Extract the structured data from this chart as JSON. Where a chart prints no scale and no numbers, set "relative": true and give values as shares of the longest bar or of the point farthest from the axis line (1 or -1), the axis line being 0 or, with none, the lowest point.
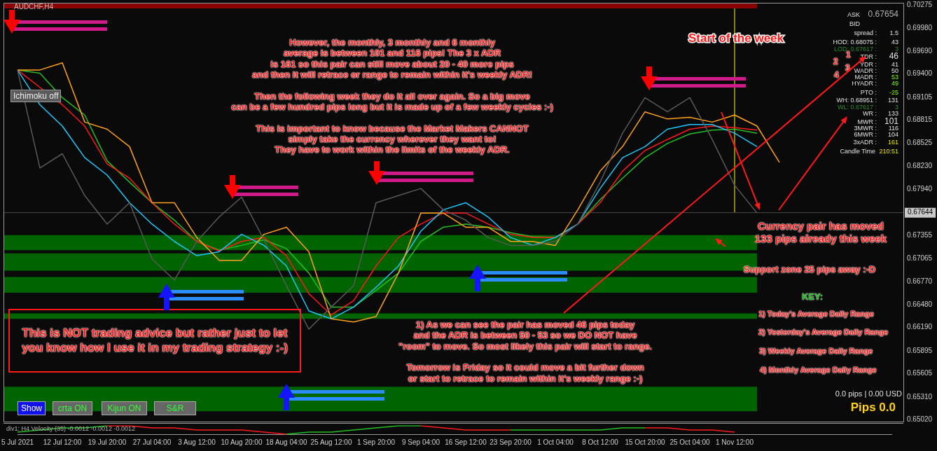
{
  "chart_data": [
    {
      "type": "line",
      "title": "AUDCHF,H4",
      "marker": "none",
      "tick_labels": "y",
      "categories": [
        "5 Jul 2021",
        null,
        "12 Jul 12:00",
        null,
        "19 Jul 20:00",
        null,
        "27 Jul 04:00",
        null,
        "3 Aug 12:00",
        null,
        "10 Aug 20:00",
        null,
        "18 Aug 04:00",
        null,
        "25 Aug 12:00",
        null,
        "1 Sep 20:00",
        null,
        "9 Sep 04:00",
        null,
        "16 Sep 12:00",
        null,
        "23 Sep 20:00",
        null,
        "1 Oct 04:00",
        null,
        "8 Oct 12:00",
        null,
        "15 Oct 20:00",
        null,
        "25 Oct 04:00",
        null,
        "1 Nov 12:00",
        null,
        null,
        null,
        null,
        null,
        null,
        null
      ],
      "series": [
        {
          "color": "#5a5a5a",
          "values": [
            0.6945,
            0.6821,
            0.6839,
            0.6786,
            0.675,
            0.6777,
            0.6706,
            0.6679,
            0.6728,
            0.6759,
            0.6784,
            0.673,
            0.6672,
            0.6617,
            0.6645,
            0.6672,
            0.6777,
            0.6786,
            0.6795,
            0.6768,
            0.6755,
            0.6733,
            0.6723,
            0.6723,
            0.6728,
            0.675,
            0.6803,
            0.6865,
            0.691,
            0.6892,
            0.691,
            0.6857,
            0.6799,
            0.6764,
            null,
            null,
            null,
            null,
            null,
            null
          ]
        },
        {
          "color": "#ffa21a",
          "values": [
            0.6945,
            0.6945,
            0.6954,
            0.6879,
            0.687,
            0.6848,
            0.6777,
            0.6777,
            0.6733,
            0.6704,
            0.6704,
            0.6737,
            0.6746,
            0.6715,
            0.663,
            0.6626,
            0.6633,
            0.6688,
            0.6764,
            0.6764,
            0.6746,
            0.6746,
            0.6728,
            0.6728,
            0.6723,
            0.6768,
            0.6817,
            0.6848,
            0.6892,
            0.6883,
            0.6885,
            0.6879,
            0.6888,
            0.6874,
            0.6828,
            null,
            null,
            null,
            null,
            null
          ]
        },
        {
          "color": "#1ec8ff",
          "values": [
            0.6945,
            0.6901,
            0.6874,
            0.6834,
            0.6812,
            0.6777,
            0.675,
            0.6728,
            0.671,
            0.6715,
            0.6737,
            0.6723,
            0.6697,
            0.664,
            0.663,
            0.6645,
            0.667,
            0.6697,
            0.6741,
            0.6768,
            0.6777,
            0.6759,
            0.6733,
            0.6723,
            0.6733,
            0.675,
            0.6795,
            0.6834,
            0.6848,
            0.687,
            0.6876,
            0.6876,
            0.6865,
            0.6848,
            null,
            null,
            null,
            null,
            null,
            null
          ]
        },
        {
          "color": "#ff1a1a",
          "values": [
            0.6945,
            0.6923,
            0.6901,
            0.6874,
            0.6826,
            0.6808,
            0.6777,
            0.675,
            0.6728,
            0.6716,
            0.6728,
            0.6733,
            0.671,
            0.6662,
            0.6635,
            0.6653,
            0.6697,
            0.6733,
            0.675,
            0.6764,
            0.6764,
            0.675,
            0.6737,
            0.6733,
            0.6733,
            0.675,
            0.6777,
            0.6817,
            0.6843,
            0.6857,
            0.687,
            0.6874,
            0.6872,
            0.6869,
            null,
            null,
            null,
            null,
            null,
            null
          ]
        },
        {
          "color": "#22c022",
          "values": [
            0.6945,
            0.6941,
            0.691,
            0.6888,
            0.683,
            0.6803,
            0.6777,
            0.6755,
            0.6728,
            0.6717,
            0.6723,
            0.673,
            0.6719,
            0.6688,
            0.6645,
            0.6645,
            0.6666,
            0.6688,
            0.6728,
            0.6746,
            0.675,
            0.6746,
            0.6739,
            0.6734,
            0.6733,
            0.675,
            0.6781,
            0.6808,
            0.6834,
            0.6852,
            0.6864,
            0.6869,
            0.687,
            0.6865,
            null,
            null,
            null,
            null,
            null,
            null
          ]
        }
      ],
      "ylim": [
        0.65,
        0.703
      ],
      "yticks": [
        0.70275,
        {
          "value": 0.6998,
          "label": "0.69980"
        },
        {
          "value": 0.6969,
          "label": "0.69690"
        },
        {
          "value": 0.694,
          "label": "0.69400"
        },
        0.69105,
        0.68815,
        0.68525,
        {
          "value": 0.6823,
          "label": "0.68230"
        },
        {
          "value": 0.6794,
          "label": "0.67940"
        },
        0.67355,
        0.67065,
        {
          "value": 0.6677,
          "label": "0.66770"
        },
        {
          "value": 0.6648,
          "label": "0.66480"
        },
        {
          "value": 0.6619,
          "label": "0.66190"
        },
        0.65895,
        0.65605,
        {
          "value": 0.6531,
          "label": "0.65310"
        },
        {
          "value": 0.6502,
          "label": "0.65020"
        }
      ],
      "ref_lines": [
        {
          "axis": "y",
          "value": 0.67644,
          "label": "0.67644",
          "color": "#c8c8c8"
        },
        {
          "axis": "x",
          "value": "1 Nov 12:00",
          "label": "Start of the week",
          "color": "#ffff00"
        }
      ],
      "bands": [
        {
          "axis": "y",
          "from": 0.7023,
          "to": 0.7029,
          "color": "#8b0000"
        },
        {
          "axis": "y",
          "from": 0.6717,
          "to": 0.6736,
          "color": "#006400"
        },
        {
          "axis": "y",
          "from": 0.6691,
          "to": 0.6713,
          "color": "#006400"
        },
        {
          "axis": "y",
          "from": 0.6663,
          "to": 0.6683,
          "color": "#006400"
        },
        {
          "axis": "y",
          "from": 0.663,
          "to": 0.6637,
          "color": "#006400"
        },
        {
          "axis": "y",
          "from": 0.6513,
          "to": 0.6544,
          "color": "#006400"
        }
      ],
      "annotations": [
        "However, the monthly, 3 monthly and 6 monthly\naverage is between 101 and 116 pips! The 3 x ADR\nis 161 so this pair can still move about 20 - 40 more pips\nand then it will retrace or range to remain within it's weekly ADR!\n\nThen the following week they do it all over again. So a big move\ncan be a few hundred pips long but it is made up of a few weekly cycles :-)\n\nThis is important to know because the Market Makers CANNOT\nsimply take the currency wherever they want to!\nThey have to work within the limits of the weekly ADR.",
        "Currency pair has moved\n133 pips already this week",
        "Support zone 25 pips away :-D",
        "KEY:",
        "1) Today's Average Daily Range",
        "2) Yesterday's Average Daily Range",
        "3) Weekly Average Daily Range",
        "4) Monthly Average Daily Range",
        "1) As we can see the pair has moved 46 pips today\nand the ADR is between 50 - 53 so we DO NOT have\n\"room\" to move. So most likely this pair will start to range.\n\nTomorrow is Friday so it could move a bit further down\nor start to retrace to remain within it's weekly range :-)",
        "This is NOT trading advice but rather just to let\nyou know how I use it in my trading strategy :-)",
        "0.0 pips | 0.00 USD",
        "Pips 0.0",
        "Ichimoku off",
        "Show",
        "crta ON",
        "Kijun ON",
        "S&R",
        "ASK",
        "0.67654",
        "BID",
        "spread :",
        "1.5",
        "HOD: 0.68075 :",
        "43",
        "LOD: 0.67617 :",
        "3",
        "TDR :",
        "46",
        "YDR :",
        "41",
        "WADR :",
        "50",
        "MADR :",
        "53",
        "HYADR :",
        "49",
        "PTO :",
        "-25",
        "WH: 0.68951 :",
        "131",
        "WL: 0.67617 :",
        "3",
        "WR :",
        "133",
        "MWR :",
        "101",
        "3MWR :",
        "116",
        "6MWR :",
        "104",
        "3xADR :",
        "161",
        "Candle Time",
        "210:51",
        "1",
        "2",
        "3",
        "4"
      ]
    },
    {
      "type": "line",
      "title": "div1: H4 Velocity (35) -0.0012 -0.0012 -0.0012",
      "relative": true,
      "marker": "none",
      "categories": [
        "5 Jul 2021",
        null,
        "12 Jul 12:00",
        null,
        "19 Jul 20:00",
        null,
        "27 Jul 04:00",
        null,
        "3 Aug 12:00",
        null,
        "10 Aug 20:00",
        null,
        "18 Aug 04:00",
        null,
        "25 Aug 12:00",
        null,
        "1 Sep 20:00",
        null,
        "9 Sep 04:00",
        null,
        "16 Sep 12:00",
        null,
        "23 Sep 20:00",
        null,
        "1 Oct 04:00",
        null,
        "8 Oct 12:00",
        null,
        "15 Oct 20:00",
        null,
        "25 Oct 04:00",
        null,
        "1 Nov 12:00",
        null,
        null,
        null,
        null,
        null,
        null,
        null
      ],
      "series": [
        {
          "color": "#22c022",
          "values": [
            0.25,
            0.5,
            0.75,
            0.75,
            1,
            null,
            null,
            null,
            null,
            null,
            null,
            null,
            0,
            0.25,
            0.25,
            0.5,
            0.75,
            1,
            1,
            null,
            null,
            null,
            0.5,
            0.5,
            0.5,
            0.5,
            0.5,
            0.75,
            0.75,
            null,
            null,
            null,
            null,
            null,
            null,
            null,
            null,
            null,
            null,
            null
          ]
        },
        {
          "color": "#ff1a1a",
          "values": [
            null,
            null,
            null,
            null,
            1,
            1,
            0.75,
            0.75,
            0.5,
            0.5,
            0.5,
            0.25,
            0,
            null,
            null,
            null,
            null,
            null,
            1,
            0.75,
            0.5,
            0.5,
            0.5,
            null,
            null,
            null,
            null,
            null,
            0.75,
            0.75,
            0.5,
            0.5,
            0.25,
            null,
            null,
            null,
            null,
            null,
            null,
            null
          ]
        }
      ]
    }
  ]
}
